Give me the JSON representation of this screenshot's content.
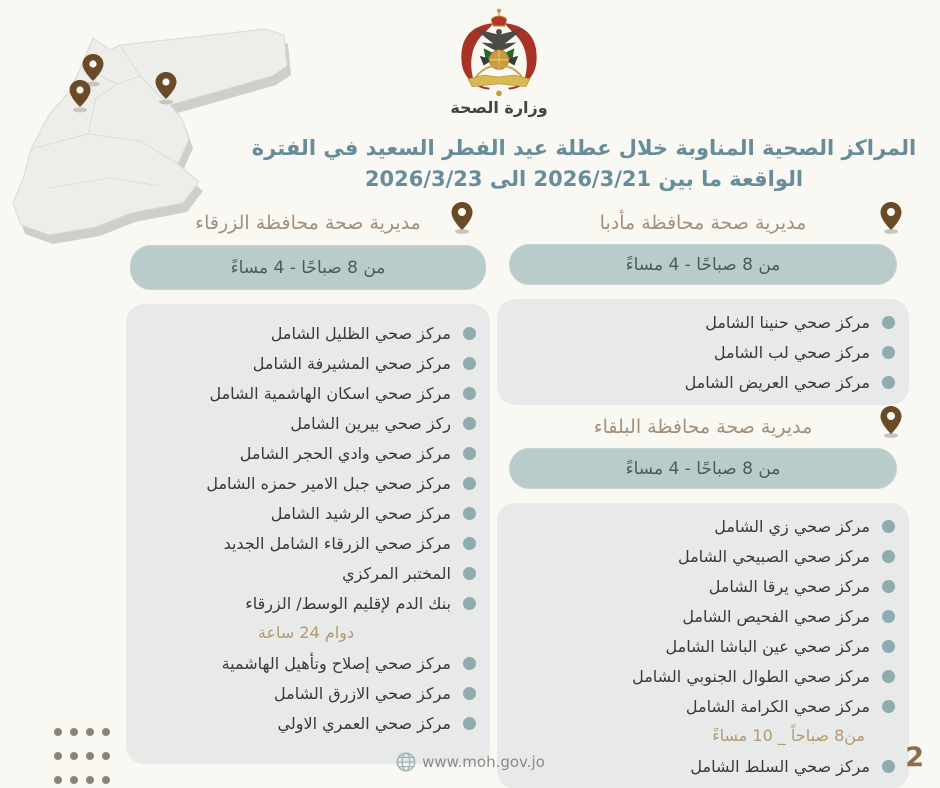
{
  "header": {
    "logo_caption": "وزارة الصحة",
    "title_line1": "المراكز الصحية المناوبة خلال عطلة عيد الفطر السعيد في  الفترة",
    "title_line2": "الواقعة ما بين  2026/3/21 الى  2026/3/23"
  },
  "sections": [
    {
      "id": "madaba",
      "title": "مديرية صحة محافظة مأدبا",
      "hours": "من 8 صباحًا - 4 مساءً",
      "items": [
        "مركز صحي حنينا الشامل",
        "مركز صحي لب الشامل",
        "مركز صحي العريض الشامل"
      ]
    },
    {
      "id": "balqa",
      "title": "مديرية صحة محافظة البلقاء",
      "hours": "من 8 صباحًا - 4 مساءً",
      "items": [
        "مركز صحي زي الشامل",
        "مركز صحي الصبيحي الشامل",
        "مركز صحي يرقا الشامل",
        "مركز صحي الفحيص الشامل",
        "مركز صحي عين الباشا الشامل",
        "مركز صحي الطوال الجنوبي الشامل",
        "مركز صحي الكرامة الشامل"
      ],
      "note": "من8 صباحاً _ 10 مساءً",
      "items_after_note": [
        "مركز صحي السلط الشامل"
      ]
    },
    {
      "id": "zarqa",
      "title": "مديرية صحة محافظة الزرقاء",
      "hours": "من 8 صباحًا - 4 مساءً",
      "items": [
        "مركز صحي الظليل الشامل",
        "مركز صحي المشيرفة الشامل",
        "مركز صحي اسكان الهاشمية الشامل",
        "ركز صحي بيرين الشامل",
        "مركز صحي وادي الحجر الشامل",
        "مركز صحي جبل الامير حمزه الشامل",
        "مركز صحي  الرشيد الشامل",
        "مركز صحي الزرقاء الشامل الجديد",
        "المختبر المركزي",
        "بنك الدم لإقليم الوسط/ الزرقاء"
      ],
      "note": "دوام 24 ساعة",
      "items_after_note": [
        "مركز صحي إصلاح وتأهيل الهاشمية",
        "مركز صحي الازرق الشامل",
        "مركز صحي العمري الاولي"
      ]
    }
  ],
  "footer": {
    "website": "www.moh.gov.jo",
    "page_number": "2"
  },
  "icons": {
    "section_marker": "location-pin",
    "map_markers": "location-pin",
    "list_bullet": "dot",
    "footer": "globe",
    "logo": "jordan-coat-of-arms"
  },
  "colors": {
    "background": "#faf8f3",
    "title": "#678d9b",
    "section_title": "#a28f7c",
    "banner_bg": "#b9cccb",
    "banner_text": "#4b5b5a",
    "panel_bg": "#e7eae8",
    "bullet": "#8fadb0",
    "item_text": "#393935",
    "note": "#b39a72",
    "pin": "#6b4a28",
    "page_number": "#8a6e4b",
    "website_text": "#8b8b86"
  }
}
